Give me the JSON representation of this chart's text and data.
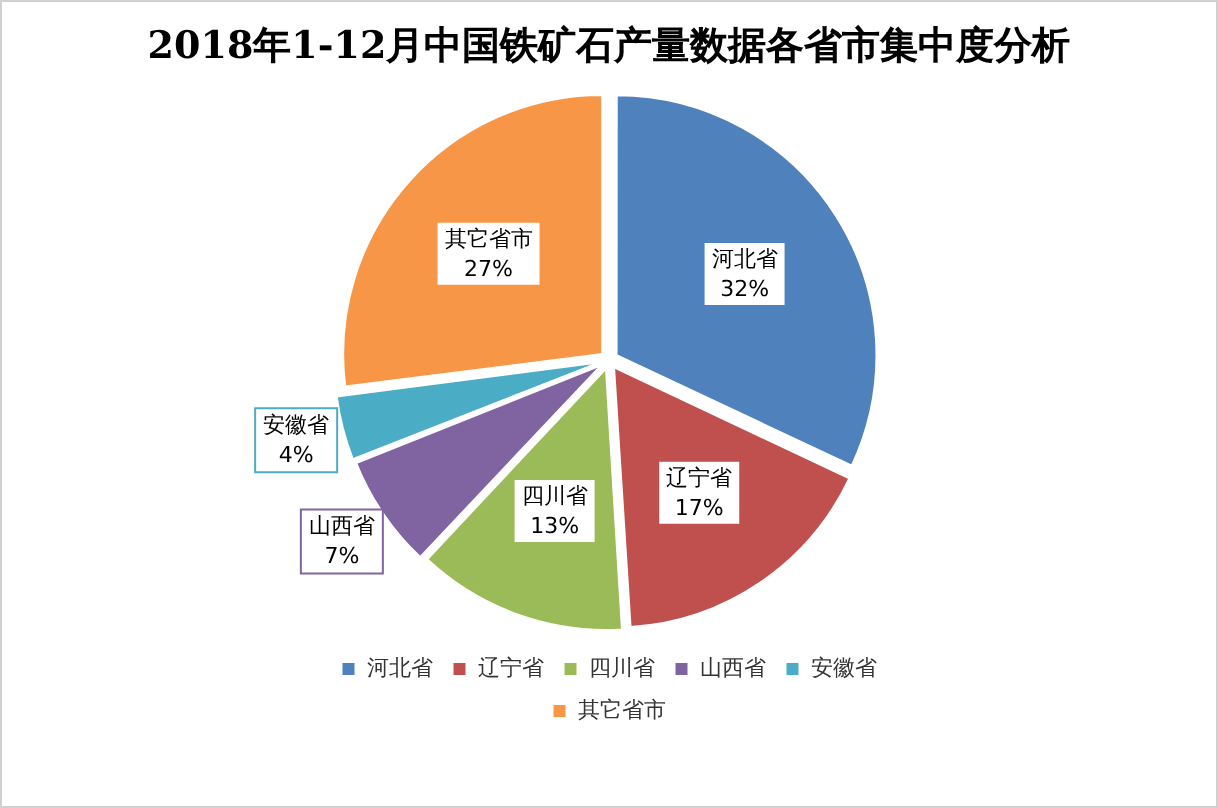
{
  "chart_data": {
    "type": "pie",
    "title": "2018年1-12月中国铁矿石产量数据各省市集中度分析",
    "categories": [
      "河北省",
      "辽宁省",
      "四川省",
      "山西省",
      "安徽省",
      "其它省市"
    ],
    "values": [
      32,
      17,
      13,
      7,
      4,
      27
    ],
    "colors": [
      "#4f81bd",
      "#c0504d",
      "#9bbb59",
      "#8064a2",
      "#4bacc6",
      "#f79646"
    ],
    "value_labels": [
      "32%",
      "17%",
      "13%",
      "7%",
      "4%",
      "27%"
    ],
    "legend": "bottom"
  }
}
